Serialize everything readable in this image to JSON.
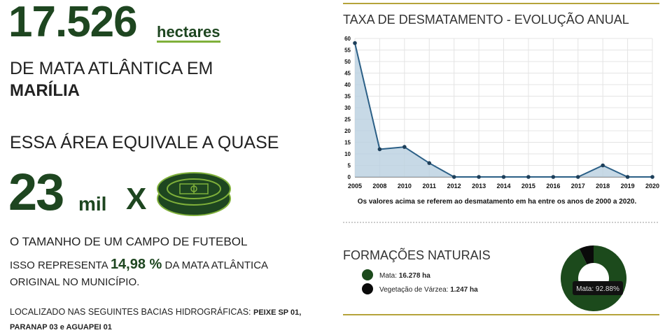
{
  "left": {
    "area_value": "17.526",
    "area_unit": "hectares",
    "line1": "DE MATA ATLÂNTICA EM",
    "city": "MARÍLIA",
    "equivale": "ESSA ÁREA EQUIVALE A QUASE",
    "fields_number": "23",
    "fields_unit": "mil",
    "times": "X",
    "fields_caption": "O TAMANHO DE UM CAMPO DE FUTEBOL",
    "represents_prefix": "ISSO REPRESENTA",
    "percent": "14,98 %",
    "represents_suffix": "DA MATA ATLÂNTICA ORIGINAL NO MUNICÍPIO.",
    "basins_label": "LOCALIZADO NAS SEGUINTES BACIAS HIDROGRÁFICAS:",
    "basins": "PEIXE SP 01, PARANAP 03 e AGUAPEI 01"
  },
  "chart_data": [
    {
      "type": "area",
      "title": "TAXA DE DESMATAMENTO - EVOLUÇÃO ANUAL",
      "categories": [
        "2005",
        "2008",
        "2010",
        "2011",
        "2012",
        "2013",
        "2014",
        "2015",
        "2016",
        "2017",
        "2018",
        "2019",
        "2020"
      ],
      "values": [
        58,
        12,
        13,
        6,
        0,
        0,
        0,
        0,
        0,
        0,
        5,
        0,
        0
      ],
      "color": "#2b5f86",
      "fill": "#b9cfe0",
      "ylim": [
        0,
        60
      ],
      "yticks": [
        0,
        5,
        10,
        15,
        20,
        25,
        30,
        35,
        40,
        45,
        50,
        55,
        60
      ],
      "grid": true,
      "note": "Os valores acima se referem ao desmatamento em ha entre os anos de 2000 a 2020."
    },
    {
      "type": "donut",
      "title": "FORMAÇÕES NATURAIS",
      "categories": [
        "Mata:",
        "Vegetação de Várzea:"
      ],
      "values": [
        16278,
        1247
      ],
      "value_labels": [
        "16.278 ha",
        "1.247 ha"
      ],
      "colors": [
        "#1c4a1c",
        "#0a0a0a"
      ],
      "tooltip": "Mata: 92.88%"
    }
  ]
}
